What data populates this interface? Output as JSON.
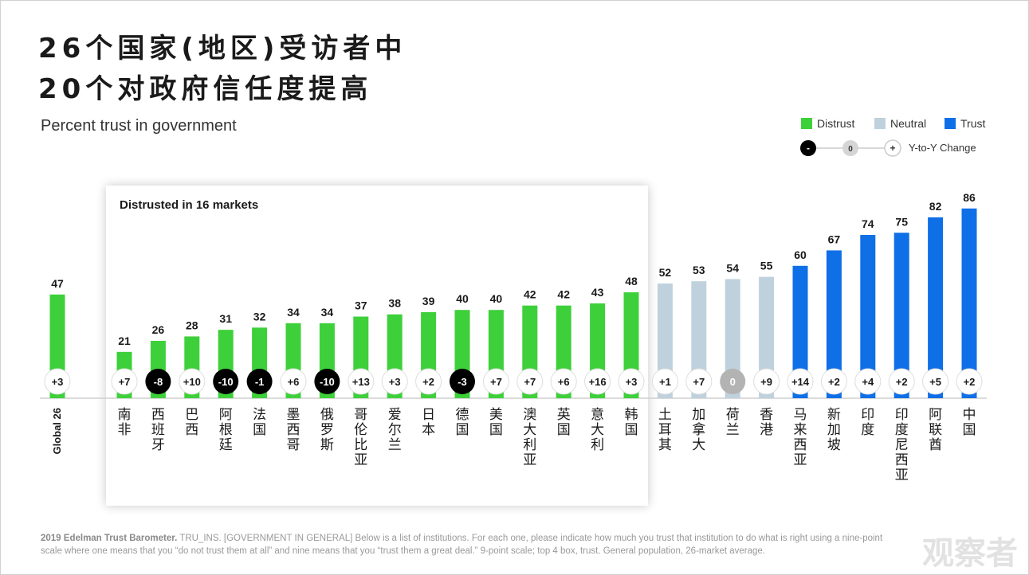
{
  "title_line1": "26个国家(地区)受访者中",
  "title_line2": "20个对政府信任度提高",
  "subtitle": "Percent trust in government",
  "legend": {
    "distrust": "Distrust",
    "neutral": "Neutral",
    "trust": "Trust",
    "neg": "-",
    "zero": "0",
    "pos": "+",
    "change_label": "Y-to-Y Change"
  },
  "highlight_label": "Distrusted in 16 markets",
  "footer": {
    "bold": "2019 Edelman Trust Barometer.",
    "text": " TRU_INS. [GOVERNMENT IN GENERAL] Below is a list of institutions. For each one, please indicate how much you trust that institution to do what is right using a nine-point scale where one means that you “do not trust them at all” and nine means that you “trust them a great deal.” 9-point scale; top 4 box, trust. General population, 26-market average."
  },
  "watermark": "观察者",
  "colors": {
    "distrust": "#3ed03a",
    "neutral": "#bfd1dc",
    "trust": "#0f6fe6",
    "negative_change": "#000000",
    "zero_change": "#b3b3b3"
  },
  "chart_data": {
    "type": "bar",
    "ylim": [
      0,
      100
    ],
    "categories": [
      "Global 26",
      "南非",
      "西班牙",
      "巴西",
      "阿根廷",
      "法国",
      "墨西哥",
      "俄罗斯",
      "哥伦比亚",
      "爱尔兰",
      "日本",
      "德国",
      "美国",
      "澳大利亚",
      "英国",
      "意大利",
      "韩国",
      "土耳其",
      "加拿大",
      "荷兰",
      "香港",
      "马来西亚",
      "新加坡",
      "印度",
      "印度尼西亚",
      "阿联酋",
      "中国"
    ],
    "values": [
      47,
      21,
      26,
      28,
      31,
      32,
      34,
      34,
      37,
      38,
      39,
      40,
      40,
      42,
      42,
      43,
      48,
      52,
      53,
      54,
      55,
      60,
      67,
      74,
      75,
      82,
      86
    ],
    "changes": [
      "+3",
      "+7",
      "-8",
      "+10",
      "-10",
      "-1",
      "+6",
      "-10",
      "+13",
      "+3",
      "+2",
      "-3",
      "+7",
      "+7",
      "+6",
      "+16",
      "+3",
      "+1",
      "+7",
      "0",
      "+9",
      "+14",
      "+2",
      "+4",
      "+2",
      "+5",
      "+2"
    ],
    "groups": [
      "distrust",
      "distrust",
      "distrust",
      "distrust",
      "distrust",
      "distrust",
      "distrust",
      "distrust",
      "distrust",
      "distrust",
      "distrust",
      "distrust",
      "distrust",
      "distrust",
      "distrust",
      "distrust",
      "distrust",
      "neutral",
      "neutral",
      "neutral",
      "neutral",
      "trust",
      "trust",
      "trust",
      "trust",
      "trust",
      "trust"
    ]
  }
}
